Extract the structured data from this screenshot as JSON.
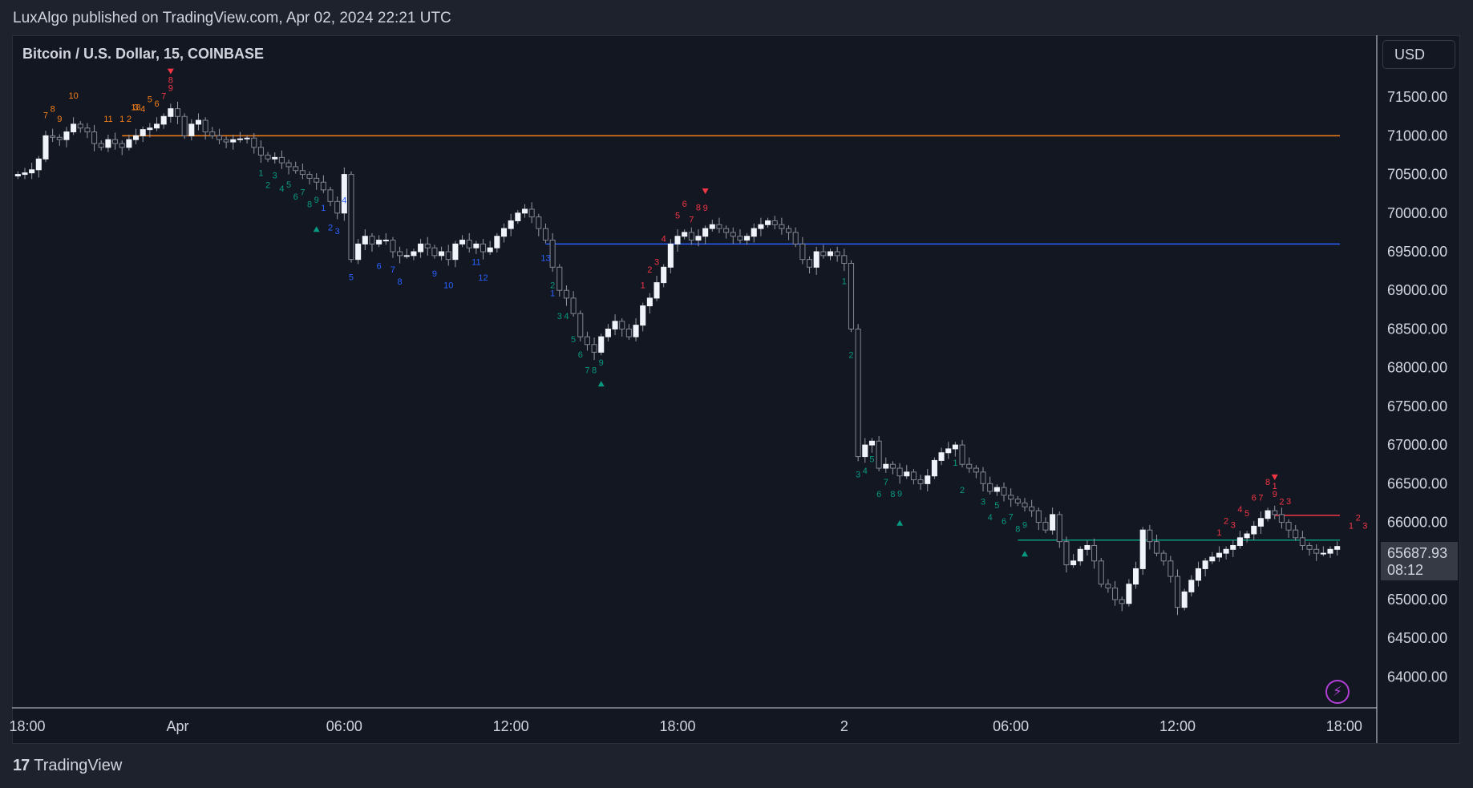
{
  "header": {
    "published": "LuxAlgo published on TradingView.com, Apr 02, 2024 22:21 UTC"
  },
  "chart": {
    "symbol": "Bitcoin / U.S. Dollar, 15, COINBASE",
    "currency": "USD",
    "last_price": "65687.93",
    "countdown": "08:12"
  },
  "footer": {
    "brand": "TradingView",
    "logo": "17"
  },
  "colors": {
    "background": "#131722",
    "frame": "#1e222d",
    "text": "#d1d4dc",
    "candle_up": "#f0f3fa",
    "candle_down": "#808591",
    "wick": "#9598a1",
    "orange": "#f57f17",
    "red": "#f23645",
    "green": "#089981",
    "blue": "#2962ff"
  },
  "icons": [
    "flash-icon",
    "tradingview-logo-icon"
  ],
  "chart_data": {
    "type": "candlestick",
    "ylim": [
      63600,
      72300
    ],
    "yticks": [
      "71500.00",
      "71000.00",
      "70500.00",
      "70000.00",
      "69500.00",
      "69000.00",
      "68500.00",
      "68000.00",
      "67500.00",
      "67000.00",
      "66500.00",
      "66000.00",
      "65500.00",
      "65000.00",
      "64500.00",
      "64000.00"
    ],
    "xticks": [
      {
        "label": "18:00",
        "index": -1
      },
      {
        "label": "Apr",
        "index": 23
      },
      {
        "label": "06:00",
        "index": 47
      },
      {
        "label": "12:00",
        "index": 71
      },
      {
        "label": "18:00",
        "index": 95
      },
      {
        "label": "2",
        "index": 119
      },
      {
        "label": "06:00",
        "index": 143
      },
      {
        "label": "12:00",
        "index": 167
      },
      {
        "label": "18:00",
        "index": 191
      }
    ],
    "closes": [
      70500,
      70520,
      70560,
      70700,
      71000,
      70980,
      70950,
      71050,
      71150,
      71100,
      71050,
      70900,
      70850,
      70950,
      70900,
      70850,
      70950,
      71000,
      71080,
      71100,
      71150,
      71250,
      71350,
      71250,
      71000,
      71150,
      71200,
      71050,
      71000,
      70950,
      70920,
      70950,
      70960,
      70970,
      70850,
      70750,
      70700,
      70720,
      70650,
      70600,
      70550,
      70500,
      70450,
      70400,
      70300,
      70150,
      70000,
      70500,
      69400,
      69600,
      69700,
      69600,
      69650,
      69650,
      69500,
      69450,
      69450,
      69500,
      69600,
      69550,
      69450,
      69500,
      69400,
      69600,
      69650,
      69550,
      69600,
      69500,
      69550,
      69700,
      69800,
      69900,
      70000,
      70050,
      69950,
      69800,
      69650,
      69300,
      69000,
      68900,
      68700,
      68400,
      68300,
      68200,
      68400,
      68500,
      68600,
      68500,
      68400,
      68550,
      68800,
      68900,
      69100,
      69300,
      69600,
      69700,
      69750,
      69650,
      69700,
      69800,
      69850,
      69800,
      69750,
      69700,
      69650,
      69700,
      69800,
      69850,
      69900,
      69850,
      69800,
      69750,
      69600,
      69400,
      69300,
      69500,
      69450,
      69500,
      69450,
      69350,
      68500,
      66850,
      67000,
      67050,
      66700,
      66750,
      66700,
      66600,
      66650,
      66550,
      66500,
      66600,
      66800,
      66900,
      66950,
      67000,
      66750,
      66700,
      66650,
      66500,
      66400,
      66450,
      66350,
      66300,
      66250,
      66200,
      66150,
      66000,
      65900,
      66100,
      65750,
      65450,
      65500,
      65650,
      65700,
      65500,
      65200,
      65150,
      65000,
      64950,
      65200,
      65400,
      65900,
      65750,
      65600,
      65500,
      65300,
      64900,
      65100,
      65250,
      65400,
      65500,
      65550,
      65600,
      65650,
      65700,
      65800,
      65850,
      65950,
      66050,
      66150,
      66100,
      66000,
      65900,
      65800,
      65700,
      65650,
      65600,
      65600,
      65650,
      65687.93
    ],
    "indicators": {
      "levels": [
        {
          "price": 71000,
          "color": "#f57f17",
          "from": 15,
          "to": 999
        },
        {
          "price": 69600,
          "color": "#2962ff",
          "from": 76,
          "to": 999
        },
        {
          "price": 65770,
          "color": "#089981",
          "from": 144,
          "to": 999
        },
        {
          "price": 66090,
          "color": "#f23645",
          "from": 181,
          "to": 999
        }
      ],
      "sequences": [
        {
          "color": "#f57f17",
          "pos": "above",
          "labels": [
            [
              "7",
              4
            ],
            [
              "8",
              5
            ],
            [
              "9",
              6
            ],
            [
              "10",
              8
            ],
            [
              "11",
              13
            ],
            [
              "1",
              15
            ],
            [
              "2",
              16
            ],
            [
              "3",
              17
            ],
            [
              "4",
              18
            ],
            [
              "5",
              19
            ],
            [
              "6",
              20
            ],
            [
              "13",
              17
            ]
          ]
        },
        {
          "color": "#f23645",
          "pos": "above",
          "labels": [
            [
              "7",
              21
            ],
            [
              "8",
              22
            ],
            [
              "9",
              22
            ]
          ]
        },
        {
          "color": "#089981",
          "pos": "below",
          "labels": [
            [
              "1",
              35
            ],
            [
              "2",
              36
            ],
            [
              "3",
              37
            ],
            [
              "4",
              38
            ],
            [
              "5",
              39
            ],
            [
              "6",
              40
            ],
            [
              "7",
              41
            ],
            [
              "8",
              42
            ],
            [
              "9",
              43
            ]
          ]
        },
        {
          "color": "#2962ff",
          "pos": "below",
          "labels": [
            [
              "1",
              44
            ],
            [
              "2",
              45
            ],
            [
              "3",
              46
            ],
            [
              "4",
              47
            ],
            [
              "5",
              48
            ],
            [
              "6",
              52
            ],
            [
              "7",
              54
            ],
            [
              "8",
              55
            ],
            [
              "9",
              60
            ],
            [
              "10",
              62
            ],
            [
              "11",
              66
            ],
            [
              "12",
              67
            ],
            [
              "13",
              76
            ],
            [
              "1",
              77
            ]
          ]
        },
        {
          "color": "#089981",
          "pos": "below",
          "labels": [
            [
              "2",
              77
            ],
            [
              "3",
              78
            ],
            [
              "4",
              79
            ],
            [
              "5",
              80
            ],
            [
              "6",
              81
            ],
            [
              "7",
              82
            ],
            [
              "8",
              83
            ],
            [
              "9",
              84
            ]
          ]
        },
        {
          "color": "#f23645",
          "pos": "above",
          "labels": [
            [
              "1",
              90
            ],
            [
              "2",
              91
            ],
            [
              "3",
              92
            ],
            [
              "4",
              93
            ],
            [
              "5",
              95
            ],
            [
              "6",
              96
            ],
            [
              "7",
              97
            ],
            [
              "8",
              98
            ],
            [
              "9",
              99
            ]
          ]
        },
        {
          "color": "#089981",
          "pos": "below",
          "labels": [
            [
              "1",
              119
            ],
            [
              "2",
              120
            ],
            [
              "3",
              121
            ],
            [
              "4",
              122
            ],
            [
              "5",
              123
            ],
            [
              "6",
              124
            ],
            [
              "7",
              125
            ],
            [
              "8",
              126
            ],
            [
              "9",
              127
            ]
          ]
        },
        {
          "color": "#089981",
          "pos": "below",
          "labels": [
            [
              "1",
              135
            ],
            [
              "2",
              136
            ],
            [
              "3",
              139
            ],
            [
              "4",
              140
            ],
            [
              "5",
              141
            ],
            [
              "6",
              142
            ],
            [
              "7",
              143
            ],
            [
              "8",
              144
            ],
            [
              "9",
              145
            ]
          ]
        },
        {
          "color": "#f23645",
          "pos": "above",
          "labels": [
            [
              "1",
              173
            ],
            [
              "2",
              174
            ],
            [
              "3",
              175
            ],
            [
              "4",
              176
            ],
            [
              "5",
              177
            ],
            [
              "6",
              178
            ],
            [
              "7",
              179
            ],
            [
              "8",
              180
            ],
            [
              "9",
              181
            ],
            [
              "1",
              181
            ],
            [
              "2",
              182
            ],
            [
              "3",
              183
            ],
            [
              "1",
              192
            ],
            [
              "2",
              193
            ],
            [
              "3",
              194
            ]
          ]
        }
      ],
      "arrows": [
        {
          "type": "sell",
          "index": 22,
          "color": "#f23645"
        },
        {
          "type": "buy",
          "index": 43,
          "color": "#089981"
        },
        {
          "type": "sell",
          "index": 99,
          "color": "#f23645"
        },
        {
          "type": "buy",
          "index": 84,
          "color": "#089981"
        },
        {
          "type": "buy",
          "index": 127,
          "color": "#089981"
        },
        {
          "type": "buy",
          "index": 145,
          "color": "#089981"
        },
        {
          "type": "sell",
          "index": 181,
          "color": "#f23645"
        }
      ]
    }
  }
}
